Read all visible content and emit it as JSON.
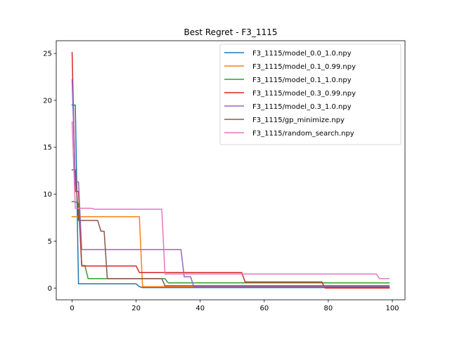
{
  "chart_data": {
    "type": "line",
    "title": "Best Regret - F3_1115",
    "xlabel": "",
    "ylabel": "",
    "xlim": [
      -4.95,
      103.95
    ],
    "ylim": [
      -1.25,
      26.35
    ],
    "xticks": [
      0,
      20,
      40,
      60,
      80,
      100
    ],
    "yticks": [
      0,
      5,
      10,
      15,
      20,
      25
    ],
    "grid": false,
    "legend_position": "top-right",
    "series": [
      {
        "name": "F3_1115/model_0.0_1.0.npy",
        "color": "#1f77b4",
        "points": [
          [
            0,
            19.5
          ],
          [
            1,
            19.5
          ],
          [
            1,
            19.5
          ],
          [
            2,
            0.45
          ],
          [
            20,
            0.45
          ],
          [
            21,
            0.15
          ],
          [
            22,
            0.05
          ],
          [
            99,
            0.05
          ]
        ]
      },
      {
        "name": "F3_1115/model_0.1_0.99.npy",
        "color": "#ff7f0e",
        "points": [
          [
            0,
            7.6
          ],
          [
            21,
            7.6
          ],
          [
            22,
            0.15
          ],
          [
            99,
            0.15
          ]
        ]
      },
      {
        "name": "F3_1115/model_0.1_1.0.npy",
        "color": "#2ca02c",
        "points": [
          [
            0,
            9.2
          ],
          [
            1,
            9.2
          ],
          [
            2,
            9.0
          ],
          [
            3,
            2.4
          ],
          [
            4,
            2.4
          ],
          [
            5,
            1.0
          ],
          [
            29,
            1.0
          ],
          [
            30,
            0.55
          ],
          [
            99,
            0.55
          ]
        ]
      },
      {
        "name": "F3_1115/model_0.3_0.99.npy",
        "color": "#d62728",
        "points": [
          [
            0,
            25.1
          ],
          [
            1,
            10.3
          ],
          [
            2,
            10.3
          ],
          [
            3,
            2.35
          ],
          [
            20,
            2.35
          ],
          [
            21,
            1.65
          ],
          [
            53,
            1.65
          ],
          [
            54,
            0.65
          ],
          [
            78,
            0.65
          ],
          [
            79,
            0.0
          ],
          [
            99,
            0.0
          ]
        ]
      },
      {
        "name": "F3_1115/model_0.3_1.0.npy",
        "color": "#9467bd",
        "points": [
          [
            0,
            22.2
          ],
          [
            1,
            11.3
          ],
          [
            2,
            11.3
          ],
          [
            3,
            4.1
          ],
          [
            34,
            4.1
          ],
          [
            35,
            1.2
          ],
          [
            37,
            1.2
          ],
          [
            38,
            0.15
          ],
          [
            99,
            0.15
          ]
        ]
      },
      {
        "name": "F3_1115/gp_minimize.npy",
        "color": "#8c564b",
        "points": [
          [
            0,
            12.6
          ],
          [
            1,
            12.6
          ],
          [
            2,
            7.2
          ],
          [
            8,
            7.2
          ],
          [
            9,
            6.05
          ],
          [
            10,
            6.05
          ],
          [
            11,
            1.0
          ],
          [
            28,
            1.0
          ],
          [
            29,
            0.25
          ],
          [
            99,
            0.25
          ]
        ]
      },
      {
        "name": "F3_1115/random_search.npy",
        "color": "#e377c2",
        "points": [
          [
            0,
            17.7
          ],
          [
            1,
            8.5
          ],
          [
            6,
            8.5
          ],
          [
            7,
            8.4
          ],
          [
            28,
            8.4
          ],
          [
            29,
            1.5
          ],
          [
            95,
            1.5
          ],
          [
            96,
            1.0
          ],
          [
            99,
            1.0
          ]
        ]
      }
    ]
  }
}
